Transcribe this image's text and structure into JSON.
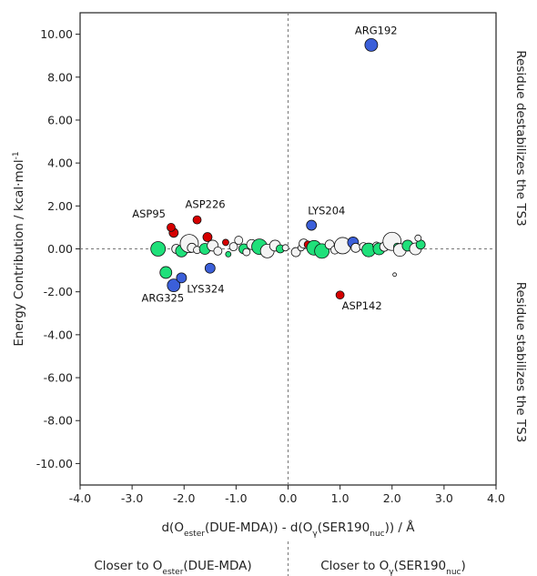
{
  "chart_data": {
    "type": "scatter",
    "title": "",
    "xlabel_parts": [
      "d(O",
      "ester",
      "(DUE-MDA)) - d(O",
      "γ",
      "(SER190",
      "nuc",
      ")) / Å"
    ],
    "ylabel": "Energy Contribution / kcal·mol",
    "ylabel_sup": "-1",
    "xlim": [
      -4.0,
      4.0
    ],
    "ylim": [
      -11.0,
      11.0
    ],
    "x_ticks": [
      "-4.0",
      "-3.0",
      "-2.0",
      "-1.0",
      "0.0",
      "1.0",
      "2.0",
      "3.0",
      "4.0"
    ],
    "y_ticks": [
      "-10.00",
      "-8.00",
      "-6.00",
      "-4.00",
      "-2.00",
      "0.00",
      "2.00",
      "4.00",
      "6.00",
      "8.00",
      "10.00"
    ],
    "side_label_top": "Residue destabilizes the TS3",
    "side_label_bottom": "Residue stabilizes the TS3",
    "bottom_left_parts": [
      "Closer to O",
      "ester",
      "(DUE-MDA)"
    ],
    "bottom_right_parts": [
      "Closer to O",
      "γ",
      "(SER190",
      "nuc",
      ")"
    ],
    "colors": {
      "blue": "#3b5fd9",
      "red": "#d60000",
      "green": "#1fe07a",
      "white": "#f4f4f4"
    },
    "labeled_points": [
      {
        "label": "ARG192",
        "x": 1.6,
        "y": 9.5,
        "color": "blue"
      },
      {
        "label": "LYS204",
        "x": 0.45,
        "y": 1.1,
        "color": "blue"
      },
      {
        "label": "ASP142",
        "x": 1.0,
        "y": -2.15,
        "color": "red"
      },
      {
        "label": "ASP95",
        "x": -2.25,
        "y": 1.0,
        "color": "red"
      },
      {
        "label": "ASP226",
        "x": -1.75,
        "y": 1.35,
        "color": "red"
      },
      {
        "label": "ARG325",
        "x": -2.2,
        "y": -1.7,
        "color": "blue"
      },
      {
        "label": "LYS324",
        "x": -2.05,
        "y": -1.35,
        "color": "blue"
      }
    ],
    "points": [
      {
        "x": -2.5,
        "y": 0.0,
        "r": 8,
        "c": "green"
      },
      {
        "x": -2.35,
        "y": -1.1,
        "r": 6.5,
        "c": "green"
      },
      {
        "x": -2.2,
        "y": 0.75,
        "r": 5,
        "c": "red"
      },
      {
        "x": -2.15,
        "y": 0.0,
        "r": 5,
        "c": "white"
      },
      {
        "x": -2.05,
        "y": -0.1,
        "r": 6.5,
        "c": "green"
      },
      {
        "x": -1.9,
        "y": 0.25,
        "r": 10,
        "c": "white"
      },
      {
        "x": -1.85,
        "y": 0.05,
        "r": 5,
        "c": "white"
      },
      {
        "x": -1.75,
        "y": -0.05,
        "r": 4,
        "c": "white"
      },
      {
        "x": -1.6,
        "y": 0.0,
        "r": 6,
        "c": "green"
      },
      {
        "x": -1.55,
        "y": 0.55,
        "r": 5,
        "c": "red"
      },
      {
        "x": -1.5,
        "y": -0.9,
        "r": 5.5,
        "c": "blue"
      },
      {
        "x": -1.45,
        "y": 0.15,
        "r": 6,
        "c": "white"
      },
      {
        "x": -1.35,
        "y": -0.1,
        "r": 4.5,
        "c": "white"
      },
      {
        "x": -1.2,
        "y": 0.3,
        "r": 3.5,
        "c": "red"
      },
      {
        "x": -1.15,
        "y": -0.25,
        "r": 3,
        "c": "green"
      },
      {
        "x": -1.05,
        "y": 0.1,
        "r": 4.5,
        "c": "white"
      },
      {
        "x": -0.95,
        "y": 0.4,
        "r": 4.5,
        "c": "white"
      },
      {
        "x": -0.85,
        "y": 0.0,
        "r": 5.5,
        "c": "green"
      },
      {
        "x": -0.8,
        "y": -0.15,
        "r": 4,
        "c": "white"
      },
      {
        "x": -0.7,
        "y": 0.2,
        "r": 5.5,
        "c": "white"
      },
      {
        "x": -0.55,
        "y": 0.1,
        "r": 8.5,
        "c": "green"
      },
      {
        "x": -0.4,
        "y": -0.1,
        "r": 7.5,
        "c": "white"
      },
      {
        "x": -0.25,
        "y": 0.15,
        "r": 6,
        "c": "white"
      },
      {
        "x": -0.15,
        "y": 0.0,
        "r": 4.5,
        "c": "green"
      },
      {
        "x": -0.05,
        "y": 0.05,
        "r": 3.5,
        "c": "white"
      },
      {
        "x": 0.15,
        "y": -0.15,
        "r": 5,
        "c": "white"
      },
      {
        "x": 0.25,
        "y": 0.05,
        "r": 3.5,
        "c": "white"
      },
      {
        "x": 0.3,
        "y": 0.25,
        "r": 5,
        "c": "white"
      },
      {
        "x": 0.38,
        "y": 0.2,
        "r": 4,
        "c": "red"
      },
      {
        "x": 0.5,
        "y": 0.05,
        "r": 8,
        "c": "green"
      },
      {
        "x": 0.65,
        "y": -0.1,
        "r": 8,
        "c": "green"
      },
      {
        "x": 0.8,
        "y": 0.2,
        "r": 5,
        "c": "white"
      },
      {
        "x": 0.9,
        "y": -0.05,
        "r": 4.5,
        "c": "white"
      },
      {
        "x": 1.05,
        "y": 0.15,
        "r": 9,
        "c": "white"
      },
      {
        "x": 1.25,
        "y": 0.3,
        "r": 6,
        "c": "blue"
      },
      {
        "x": 1.3,
        "y": 0.05,
        "r": 5,
        "c": "white"
      },
      {
        "x": 1.45,
        "y": 0.1,
        "r": 4.5,
        "c": "white"
      },
      {
        "x": 1.55,
        "y": -0.05,
        "r": 7.5,
        "c": "green"
      },
      {
        "x": 1.7,
        "y": 0.15,
        "r": 4,
        "c": "white"
      },
      {
        "x": 1.75,
        "y": 0.0,
        "r": 6.5,
        "c": "green"
      },
      {
        "x": 1.85,
        "y": 0.1,
        "r": 5,
        "c": "white"
      },
      {
        "x": 2.0,
        "y": 0.35,
        "r": 10,
        "c": "white"
      },
      {
        "x": 2.05,
        "y": -1.2,
        "r": 2,
        "c": "white"
      },
      {
        "x": 2.1,
        "y": 0.1,
        "r": 4,
        "c": "green"
      },
      {
        "x": 2.15,
        "y": -0.05,
        "r": 7,
        "c": "white"
      },
      {
        "x": 2.3,
        "y": 0.15,
        "r": 6,
        "c": "green"
      },
      {
        "x": 2.45,
        "y": 0.0,
        "r": 6.5,
        "c": "white"
      },
      {
        "x": 2.55,
        "y": 0.2,
        "r": 5,
        "c": "green"
      },
      {
        "x": 2.5,
        "y": 0.5,
        "r": 3.5,
        "c": "white"
      }
    ]
  }
}
